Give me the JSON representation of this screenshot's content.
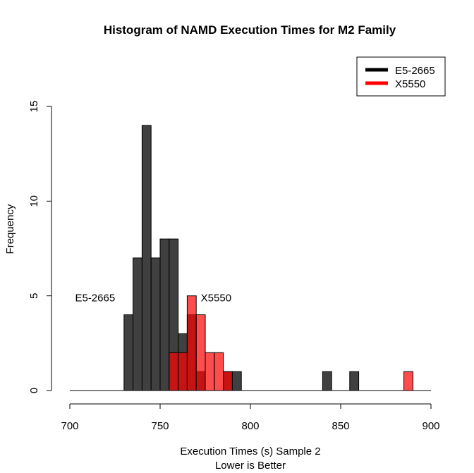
{
  "chart_data": {
    "type": "bar",
    "title": "Histogram of NAMD Execution Times for M2 Family",
    "xlabel_line1": "Execution Times (s) Sample 2",
    "xlabel_line2": "Lower is Better",
    "ylabel": "Frequency",
    "xlim": [
      700,
      900
    ],
    "ylim": [
      0,
      15
    ],
    "x_ticks": [
      700,
      750,
      800,
      850,
      900
    ],
    "y_ticks": [
      0,
      5,
      10,
      15
    ],
    "bin_width": 5,
    "legend_position": "top-right",
    "legend": [
      {
        "label": "E5-2665",
        "color": "#000000"
      },
      {
        "label": "X5550",
        "color": "#ff0000"
      }
    ],
    "annotations": [
      {
        "text": "E5-2665",
        "x": 714,
        "y": 4.9
      },
      {
        "text": "X5550",
        "x": 781,
        "y": 4.9
      }
    ],
    "series": [
      {
        "name": "E5-2665",
        "fill": "#404040",
        "bins": [
          {
            "x0": 730,
            "count": 4
          },
          {
            "x0": 735,
            "count": 7
          },
          {
            "x0": 740,
            "count": 14
          },
          {
            "x0": 745,
            "count": 7
          },
          {
            "x0": 750,
            "count": 8
          },
          {
            "x0": 755,
            "count": 8
          },
          {
            "x0": 760,
            "count": 3
          },
          {
            "x0": 765,
            "count": 4
          },
          {
            "x0": 770,
            "count": 1
          },
          {
            "x0": 775,
            "count": 0
          },
          {
            "x0": 780,
            "count": 0
          },
          {
            "x0": 785,
            "count": 1
          },
          {
            "x0": 790,
            "count": 1
          },
          {
            "x0": 840,
            "count": 1
          },
          {
            "x0": 855,
            "count": 1
          }
        ]
      },
      {
        "name": "X5550",
        "fill": "#ff0000",
        "opacity": 0.7,
        "bins": [
          {
            "x0": 755,
            "count": 2
          },
          {
            "x0": 760,
            "count": 2
          },
          {
            "x0": 765,
            "count": 5
          },
          {
            "x0": 770,
            "count": 4
          },
          {
            "x0": 775,
            "count": 2
          },
          {
            "x0": 780,
            "count": 2
          },
          {
            "x0": 785,
            "count": 1
          },
          {
            "x0": 885,
            "count": 1
          }
        ]
      }
    ]
  }
}
